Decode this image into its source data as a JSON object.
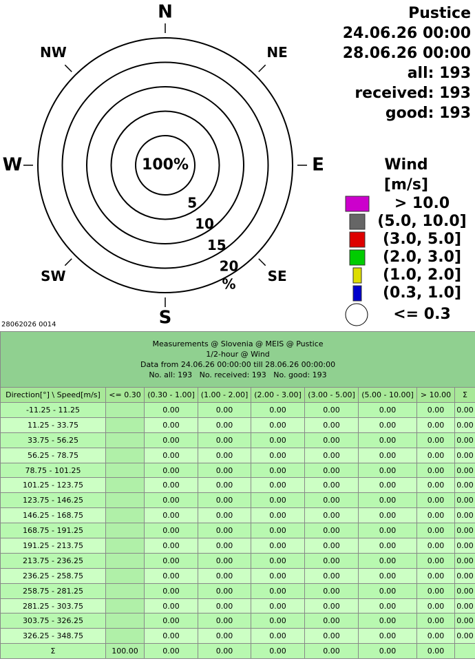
{
  "chart_data": {
    "type": "windrose",
    "directions": [
      "N",
      "NE",
      "E",
      "SE",
      "S",
      "SW",
      "W",
      "NW"
    ],
    "rticks": [
      5,
      10,
      15,
      20
    ],
    "r_unit": "%",
    "calm_label": "100%",
    "info": [
      "Pustice",
      "24.06.26 00:00",
      "28.06.26 00:00",
      "all: 193",
      "received: 193",
      "good: 193"
    ],
    "legend_title": [
      "Wind",
      "[m/s]"
    ],
    "legend": [
      {
        "label": "> 10.0",
        "color": "#cc00cc"
      },
      {
        "label": "(5.0, 10.0]",
        "color": "#666666"
      },
      {
        "label": "(3.0, 5.0]",
        "color": "#dd0000"
      },
      {
        "label": "(2.0, 3.0]",
        "color": "#00cc00"
      },
      {
        "label": "(1.0, 2.0]",
        "color": "#dddd00"
      },
      {
        "label": "(0.3, 1.0]",
        "color": "#0000cc"
      },
      {
        "label": "<= 0.3",
        "color": "#ffffff"
      }
    ]
  },
  "footer_id": "28062026 0014",
  "table": {
    "title_lines": [
      "Measurements @ Slovenia @ MEIS @ Pustice",
      "1/2-hour @ Wind",
      "Data from 24.06.26 00:00:00 till 28.06.26 00:00:00",
      "No. all: 193   No. received: 193   No. good: 193"
    ],
    "header": [
      "Direction[°] \\ Speed[m/s]",
      "<= 0.30",
      "(0.30 - 1.00]",
      "(1.00 - 2.00]",
      "(2.00 - 3.00]",
      "(3.00 - 5.00]",
      "(5.00 - 10.00]",
      "> 10.00",
      "Σ"
    ],
    "rows": [
      [
        "-11.25 - 11.25",
        null,
        "0.00",
        "0.00",
        "0.00",
        "0.00",
        "0.00",
        "0.00",
        "0.00"
      ],
      [
        "11.25 - 33.75",
        null,
        "0.00",
        "0.00",
        "0.00",
        "0.00",
        "0.00",
        "0.00",
        "0.00"
      ],
      [
        "33.75 - 56.25",
        null,
        "0.00",
        "0.00",
        "0.00",
        "0.00",
        "0.00",
        "0.00",
        "0.00"
      ],
      [
        "56.25 - 78.75",
        null,
        "0.00",
        "0.00",
        "0.00",
        "0.00",
        "0.00",
        "0.00",
        "0.00"
      ],
      [
        "78.75 - 101.25",
        null,
        "0.00",
        "0.00",
        "0.00",
        "0.00",
        "0.00",
        "0.00",
        "0.00"
      ],
      [
        "101.25 - 123.75",
        null,
        "0.00",
        "0.00",
        "0.00",
        "0.00",
        "0.00",
        "0.00",
        "0.00"
      ],
      [
        "123.75 - 146.25",
        null,
        "0.00",
        "0.00",
        "0.00",
        "0.00",
        "0.00",
        "0.00",
        "0.00"
      ],
      [
        "146.25 - 168.75",
        null,
        "0.00",
        "0.00",
        "0.00",
        "0.00",
        "0.00",
        "0.00",
        "0.00"
      ],
      [
        "168.75 - 191.25",
        null,
        "0.00",
        "0.00",
        "0.00",
        "0.00",
        "0.00",
        "0.00",
        "0.00"
      ],
      [
        "191.25 - 213.75",
        null,
        "0.00",
        "0.00",
        "0.00",
        "0.00",
        "0.00",
        "0.00",
        "0.00"
      ],
      [
        "213.75 - 236.25",
        null,
        "0.00",
        "0.00",
        "0.00",
        "0.00",
        "0.00",
        "0.00",
        "0.00"
      ],
      [
        "236.25 - 258.75",
        null,
        "0.00",
        "0.00",
        "0.00",
        "0.00",
        "0.00",
        "0.00",
        "0.00"
      ],
      [
        "258.75 - 281.25",
        null,
        "0.00",
        "0.00",
        "0.00",
        "0.00",
        "0.00",
        "0.00",
        "0.00"
      ],
      [
        "281.25 - 303.75",
        null,
        "0.00",
        "0.00",
        "0.00",
        "0.00",
        "0.00",
        "0.00",
        "0.00"
      ],
      [
        "303.75 - 326.25",
        null,
        "0.00",
        "0.00",
        "0.00",
        "0.00",
        "0.00",
        "0.00",
        "0.00"
      ],
      [
        "326.25 - 348.75",
        null,
        "0.00",
        "0.00",
        "0.00",
        "0.00",
        "0.00",
        "0.00",
        "0.00"
      ],
      [
        "Σ",
        "100.00",
        "0.00",
        "0.00",
        "0.00",
        "0.00",
        "0.00",
        "0.00",
        null
      ]
    ]
  }
}
